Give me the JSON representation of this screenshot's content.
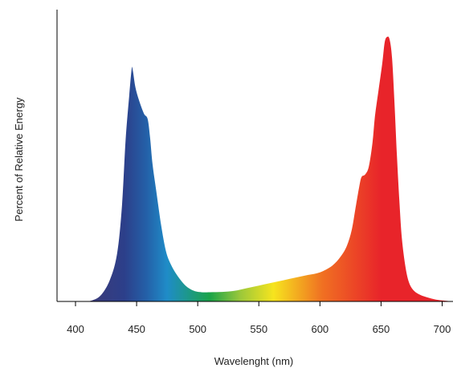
{
  "chart_data": {
    "type": "area",
    "title": "",
    "xlabel": "Wavelenght (nm)",
    "ylabel": "Percent of Relative Energy",
    "xlim": [
      380,
      710
    ],
    "ylim": [
      0,
      100
    ],
    "xticks": [
      400,
      450,
      500,
      550,
      600,
      650,
      700
    ],
    "xtick_labels": [
      "400",
      "450",
      "500",
      "550",
      "600",
      "650",
      "700"
    ],
    "yticks": [],
    "grid": false,
    "legend": "none",
    "fill": "visible-spectrum gradient (violet → blue → cyan → green → yellow → orange → red)",
    "series": [
      {
        "x": [
          411,
          420,
          428,
          434,
          438,
          441,
          444,
          446,
          447,
          449,
          452,
          456,
          459,
          461,
          463,
          466,
          470,
          474,
          478,
          483,
          490,
          497,
          503,
          510,
          520,
          530,
          540,
          550,
          560,
          570,
          580,
          590,
          600,
          610,
          617,
          622,
          626,
          629,
          632,
          634,
          637,
          640,
          643,
          645,
          648,
          651,
          653,
          655,
          657,
          659,
          661,
          663,
          665,
          667,
          670,
          673,
          677,
          682,
          688,
          695,
          702,
          708
        ],
        "y": [
          0,
          2,
          8,
          18,
          36,
          61,
          78,
          88,
          87,
          81,
          76,
          71,
          69,
          62,
          52,
          42,
          29,
          19,
          14,
          10,
          6,
          4,
          3.5,
          3.5,
          3.6,
          4.0,
          5.0,
          6.0,
          7.0,
          8.0,
          9.0,
          10.0,
          11.0,
          13.5,
          17,
          21,
          27,
          35,
          43,
          47,
          48,
          51,
          60,
          70,
          80,
          90,
          98,
          100,
          99,
          92,
          75,
          55,
          38,
          24,
          13,
          7,
          4,
          2.5,
          1.5,
          0.7,
          0.3,
          0
        ]
      }
    ],
    "colors": {
      "violet": "#3d3a78",
      "indigo": "#2c3f8a",
      "blue": "#2460a8",
      "sky": "#1f8cc8",
      "green": "#1aa448",
      "lime": "#9cc83a",
      "yellow": "#f6e41e",
      "orange": "#f07022",
      "red": "#e8242a"
    }
  }
}
